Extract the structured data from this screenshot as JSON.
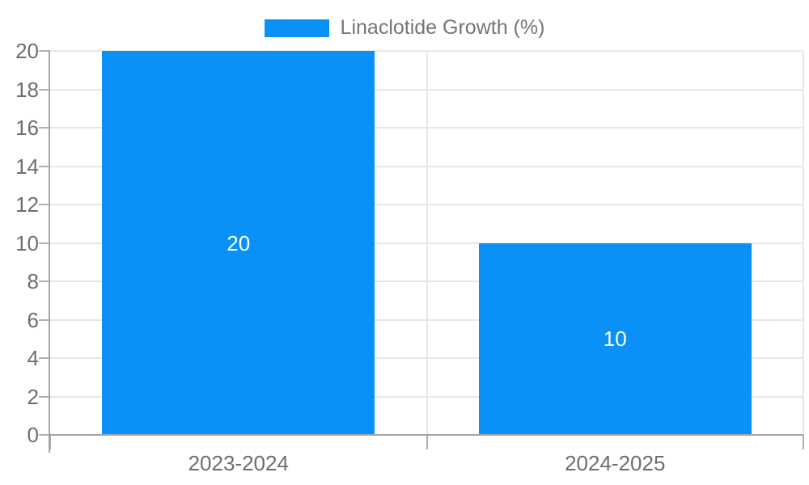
{
  "legend": {
    "label": "Linaclotide Growth (%)"
  },
  "chart_data": {
    "type": "bar",
    "categories": [
      "2023-2024",
      "2024-2025"
    ],
    "series": [
      {
        "name": "Linaclotide Growth (%)",
        "values": [
          20,
          10
        ]
      }
    ],
    "data_labels": [
      "20",
      "10"
    ],
    "title": "",
    "xlabel": "",
    "ylabel": "",
    "ylim": [
      0,
      20
    ],
    "ytick_step": 2,
    "ytick_labels": [
      "0",
      "2",
      "4",
      "6",
      "8",
      "10",
      "12",
      "14",
      "16",
      "18",
      "20"
    ],
    "grid": true,
    "legend_position": "top-center"
  },
  "colors": {
    "bar": "#0991f8",
    "axis_line": "#a3a3a3",
    "tick_mark": "#b0b0b0",
    "gridline": "#e7e7e7",
    "tick_text": "#6e6e6e",
    "legend_text": "#757575",
    "data_label_text": "#ffffff",
    "background": "#ffffff"
  }
}
